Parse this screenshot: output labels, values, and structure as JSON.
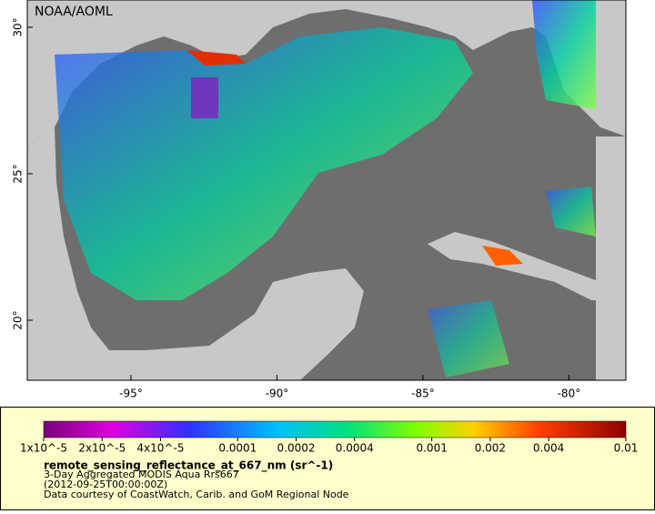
{
  "map": {
    "credit": "NOAA/AOML",
    "xlim": [
      -98.55,
      -78.05
    ],
    "ylim": [
      17.95,
      30.93
    ],
    "xticks": [
      {
        "value": -95,
        "label": "-95°"
      },
      {
        "value": -90,
        "label": "-90°"
      },
      {
        "value": -85,
        "label": "-85°"
      },
      {
        "value": -80,
        "label": "-80°"
      }
    ],
    "yticks": [
      {
        "value": 30,
        "label": "30°"
      },
      {
        "value": 25,
        "label": "25°"
      },
      {
        "value": 20,
        "label": "20°"
      }
    ]
  },
  "legend": {
    "scale": "log",
    "lim": [
      1e-05,
      0.01
    ],
    "ticks": [
      {
        "value": 1e-05,
        "label": "1x10^-5"
      },
      {
        "value": 2e-05,
        "label": "2x10^-5"
      },
      {
        "value": 4e-05,
        "label": "4x10^-5"
      },
      0.0001,
      0.0002,
      0.0004,
      0.001,
      0.002,
      0.004,
      0.01
    ],
    "title": "remote_sensing_reflectance_at_667_nm (sr^-1)",
    "lines": [
      "3-Day Aggregated MODIS Aqua Rrs667",
      "(2012-09-25T00:00:00Z)",
      "Data courtesy of CoastWatch, Carib. and GoM Regional Node"
    ]
  }
}
